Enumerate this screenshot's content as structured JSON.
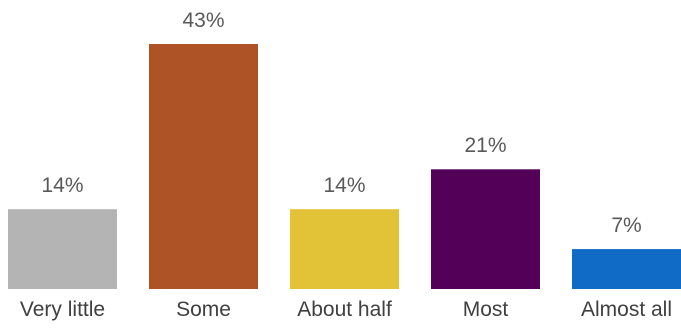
{
  "chart_data": {
    "type": "bar",
    "title": "",
    "xlabel": "",
    "ylabel": "",
    "categories": [
      "Very little",
      "Some",
      "About half",
      "Most",
      "Almost all"
    ],
    "values": [
      14,
      43,
      14,
      21,
      7
    ],
    "value_labels": [
      "14%",
      "43%",
      "14%",
      "21%",
      "7%"
    ],
    "colors": [
      "#b4b4b4",
      "#ad5325",
      "#e2c236",
      "#520058",
      "#0f6bc5"
    ],
    "ylim": [
      0,
      43
    ],
    "grid": false,
    "legend": "none"
  }
}
